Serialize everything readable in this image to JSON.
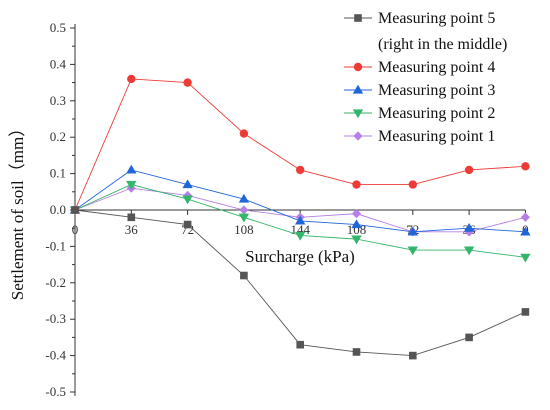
{
  "chart_data": {
    "type": "line",
    "xlabel": "Surcharge (kPa)",
    "ylabel": "Settlement of soil（mm）",
    "x_tick_labels": [
      "0",
      "36",
      "72",
      "108",
      "144",
      "108",
      "72",
      "36",
      "0"
    ],
    "y_tick_labels": [
      "0.5",
      "0.4",
      "0.3",
      "0.2",
      "0.1",
      "0.0",
      "-0.1",
      "-0.2",
      "-0.3",
      "-0.4",
      "-0.5"
    ],
    "y_ticks": [
      0.5,
      0.4,
      0.3,
      0.2,
      0.1,
      0.0,
      -0.1,
      -0.2,
      -0.3,
      -0.4,
      -0.5
    ],
    "ylim": [
      -0.5,
      0.5
    ],
    "grid": false,
    "legend_position": "top-right",
    "series": [
      {
        "name": "Measuring point 5",
        "name_line2": "(right in the middle)",
        "color": "#555555",
        "marker": "square",
        "values": [
          0.0,
          -0.02,
          -0.04,
          -0.18,
          -0.37,
          -0.39,
          -0.4,
          -0.35,
          -0.28
        ]
      },
      {
        "name": "Measuring point 4",
        "color": "#ee3b36",
        "marker": "circle",
        "values": [
          0.0,
          0.36,
          0.35,
          0.21,
          0.11,
          0.07,
          0.07,
          0.11,
          0.12
        ]
      },
      {
        "name": "Measuring point 3",
        "color": "#2166d9",
        "marker": "triangle-up",
        "values": [
          0.0,
          0.11,
          0.07,
          0.03,
          -0.03,
          -0.04,
          -0.06,
          -0.05,
          -0.06
        ]
      },
      {
        "name": "Measuring point 2",
        "color": "#33b56b",
        "marker": "triangle-down",
        "values": [
          0.0,
          0.07,
          0.03,
          -0.02,
          -0.07,
          -0.08,
          -0.11,
          -0.11,
          -0.13
        ]
      },
      {
        "name": "Measuring point 1",
        "color": "#b67fe6",
        "marker": "diamond",
        "values": [
          0.0,
          0.06,
          0.04,
          0.0,
          -0.02,
          -0.01,
          -0.06,
          -0.06,
          -0.02
        ]
      }
    ]
  }
}
